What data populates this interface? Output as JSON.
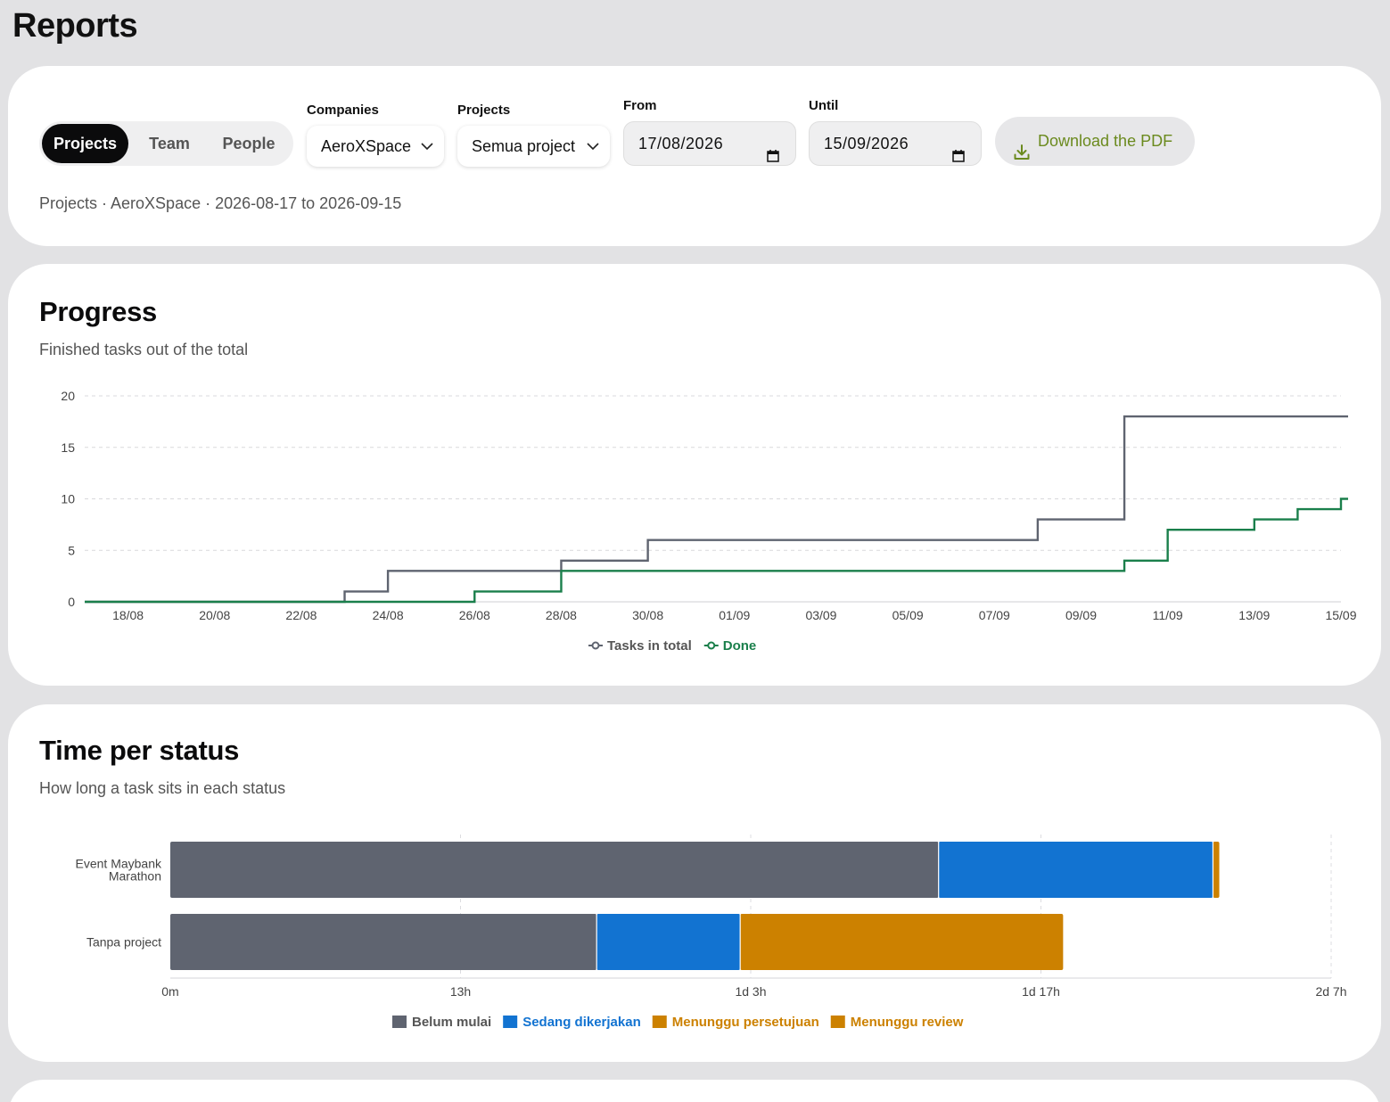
{
  "page": {
    "title": "Reports"
  },
  "filters": {
    "tabs": [
      {
        "label": "Projects",
        "active": true
      },
      {
        "label": "Team",
        "active": false
      },
      {
        "label": "People",
        "active": false
      }
    ],
    "companies": {
      "label": "Companies",
      "value": "AeroXSpace"
    },
    "projects": {
      "label": "Projects",
      "value": "Semua project"
    },
    "from": {
      "label": "From",
      "value": "17/08/2026"
    },
    "until": {
      "label": "Until",
      "value": "15/09/2026"
    },
    "download_label": "Download the PDF",
    "summary": "Projects · AeroXSpace · 2026-08-17 to 2026-09-15"
  },
  "colors": {
    "total_line": "#5f6470",
    "done_line": "#1a7f4b",
    "belum": "#5f6470",
    "sedang": "#1273d1",
    "menunggu": "#cc8100",
    "accent_pdf": "#6b8a1e"
  },
  "progress": {
    "title": "Progress",
    "subtitle": "Finished tasks out of the total",
    "chart_data": {
      "type": "line",
      "step": true,
      "x": [
        "2026-08-17",
        "2026-08-18",
        "2026-08-19",
        "2026-08-20",
        "2026-08-21",
        "2026-08-22",
        "2026-08-23",
        "2026-08-24",
        "2026-08-25",
        "2026-08-26",
        "2026-08-27",
        "2026-08-28",
        "2026-08-29",
        "2026-08-30",
        "2026-08-31",
        "2026-09-01",
        "2026-09-02",
        "2026-09-03",
        "2026-09-04",
        "2026-09-05",
        "2026-09-06",
        "2026-09-07",
        "2026-09-08",
        "2026-09-09",
        "2026-09-10",
        "2026-09-11",
        "2026-09-12",
        "2026-09-13",
        "2026-09-14",
        "2026-09-15"
      ],
      "x_ticks": [
        "18/08",
        "20/08",
        "22/08",
        "24/08",
        "26/08",
        "28/08",
        "30/08",
        "01/09",
        "03/09",
        "05/09",
        "07/09",
        "09/09",
        "11/09",
        "13/09",
        "15/09"
      ],
      "y_ticks": [
        0,
        5,
        10,
        15,
        20
      ],
      "ylim": [
        0,
        20
      ],
      "series": [
        {
          "name": "Tasks in total",
          "values": [
            0,
            0,
            0,
            0,
            0,
            0,
            1,
            3,
            3,
            3,
            3,
            4,
            4,
            6,
            6,
            6,
            6,
            6,
            6,
            6,
            6,
            6,
            8,
            8,
            18,
            18,
            18,
            18,
            18,
            18
          ]
        },
        {
          "name": "Done",
          "values": [
            0,
            0,
            0,
            0,
            0,
            0,
            0,
            0,
            0,
            1,
            1,
            3,
            3,
            3,
            3,
            3,
            3,
            3,
            3,
            3,
            3,
            3,
            3,
            3,
            4,
            7,
            7,
            8,
            9,
            10
          ]
        }
      ],
      "grid": true,
      "legend": "bottom-center"
    }
  },
  "time_per_status": {
    "title": "Time per status",
    "subtitle": "How long a task sits in each status",
    "chart_data": {
      "type": "bar",
      "orientation": "horizontal",
      "stacked": true,
      "unit": "hours",
      "categories": [
        "Event Maybank Marathon",
        "Tanpa project"
      ],
      "x_ticks": [
        "0m",
        "13h",
        "1d 3h",
        "1d 17h",
        "2d 7h"
      ],
      "xlim": [
        0,
        55
      ],
      "series": [
        {
          "name": "Belum mulai",
          "values": [
            36.4,
            20.2
          ]
        },
        {
          "name": "Sedang dikerjakan",
          "values": [
            13.0,
            6.8
          ]
        },
        {
          "name": "Menunggu persetujuan",
          "values": [
            0.3,
            15.3
          ]
        },
        {
          "name": "Menunggu review",
          "values": [
            0,
            0
          ]
        }
      ],
      "grid": true,
      "legend": "bottom-center"
    }
  }
}
